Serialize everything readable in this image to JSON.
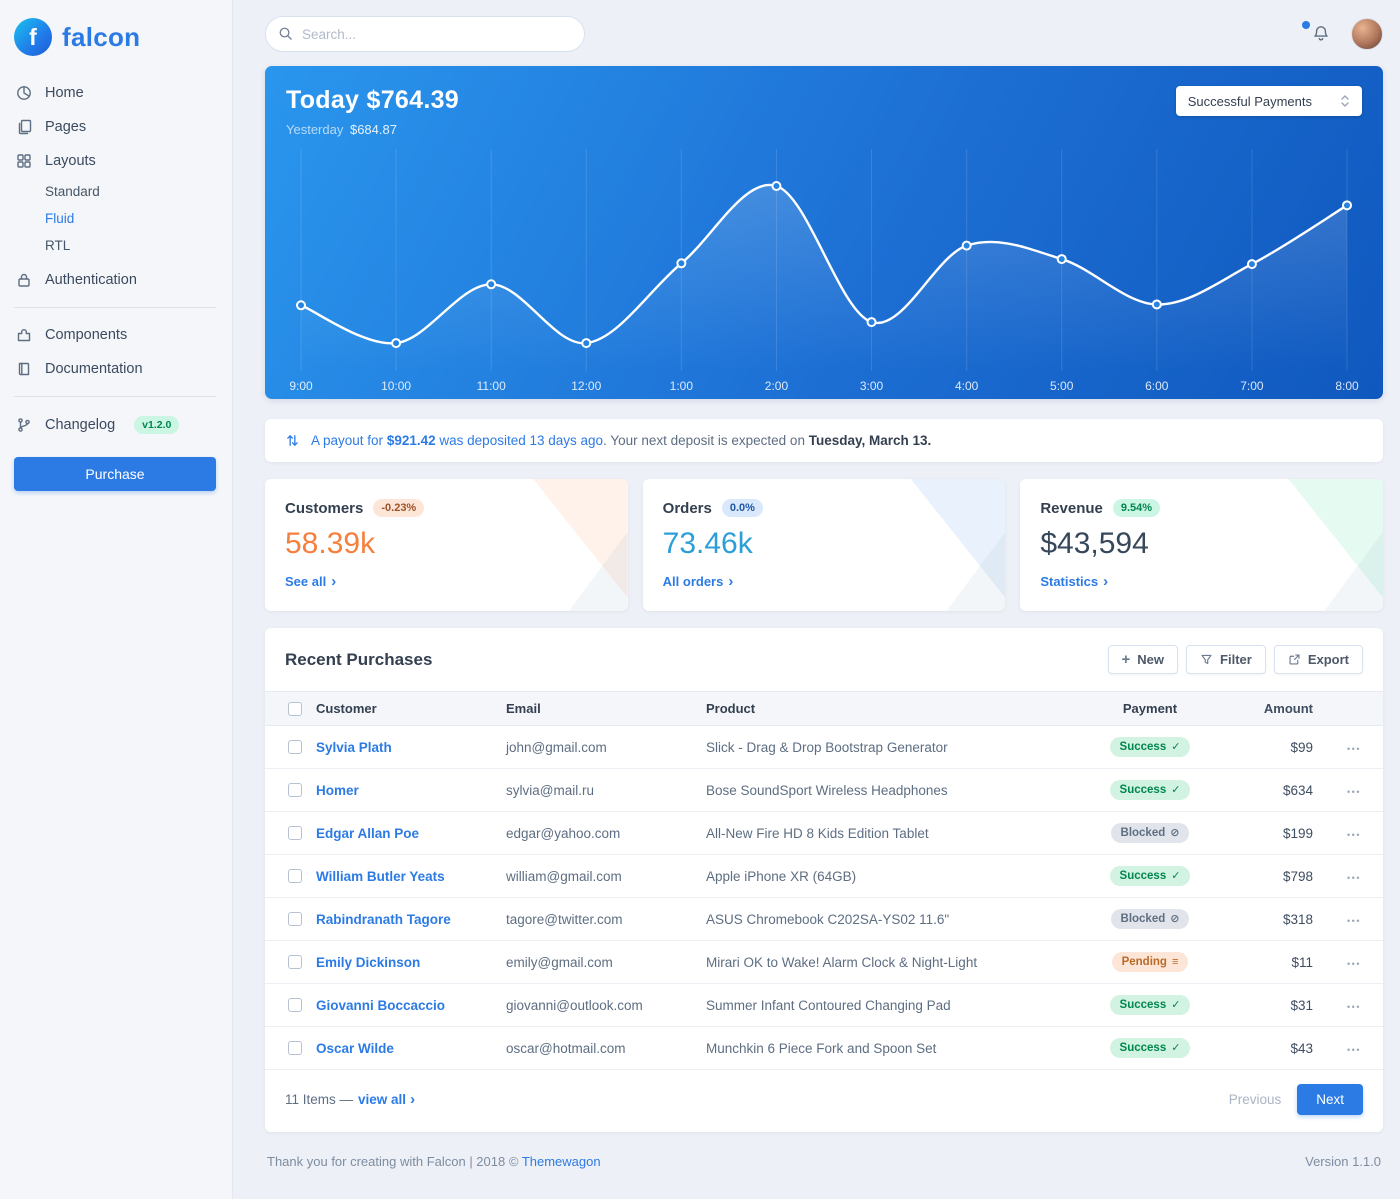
{
  "brand": {
    "name": "falcon",
    "logo_letter": "f"
  },
  "colors": {
    "primary": "#2c7be5",
    "customers_value": "#f5803e",
    "orders_value": "#2c9ed8",
    "revenue_value": "#37475c",
    "chart_gradient": [
      "#2a96ed",
      "#0f58be"
    ]
  },
  "topbar": {
    "search_placeholder": "Search..."
  },
  "sidebar": {
    "home": "Home",
    "pages": "Pages",
    "layouts": "Layouts",
    "standard": "Standard",
    "fluid": "Fluid",
    "rtl": "RTL",
    "authentication": "Authentication",
    "components": "Components",
    "documentation": "Documentation",
    "changelog": "Changelog",
    "changelog_badge": "v1.2.0",
    "purchase": "Purchase"
  },
  "payments": {
    "heading": "Today $764.39",
    "yesterday_label": "Yesterday",
    "yesterday_value": "$684.87",
    "select_value": "Successful Payments"
  },
  "chart_data": {
    "type": "line",
    "title": "Successful Payments",
    "x": [
      "9:00",
      "10:00",
      "11:00",
      "12:00",
      "1:00",
      "2:00",
      "3:00",
      "4:00",
      "5:00",
      "6:00",
      "7:00",
      "8:00"
    ],
    "values": [
      83,
      38,
      108,
      38,
      133,
      225,
      63,
      154,
      138,
      84,
      132,
      202
    ],
    "ylim": [
      0,
      250
    ],
    "xlabel": "",
    "ylabel": "",
    "grid": "vertical",
    "line_color": "#ffffff"
  },
  "payout": {
    "intro_link": "A payout for",
    "amount": "$921.42",
    "intro_link_2": "was deposited 13 days ago",
    "period": ".",
    "rest": "Your next deposit is expected on",
    "date": "Tuesday, March 13."
  },
  "stats": {
    "customers": {
      "title": "Customers",
      "badge": "-0.23%",
      "value": "58.39k",
      "link": "See all"
    },
    "orders": {
      "title": "Orders",
      "badge": "0.0%",
      "value": "73.46k",
      "link": "All orders"
    },
    "revenue": {
      "title": "Revenue",
      "badge": "9.54%",
      "value": "$43,594",
      "link": "Statistics"
    }
  },
  "purchases": {
    "title": "Recent Purchases",
    "new_button": "New",
    "filter_button": "Filter",
    "export_button": "Export",
    "headers": {
      "customer": "Customer",
      "email": "Email",
      "product": "Product",
      "payment": "Payment",
      "amount": "Amount"
    },
    "rows": [
      {
        "customer": "Sylvia Plath",
        "email": "john@gmail.com",
        "product": "Slick - Drag & Drop Bootstrap Generator",
        "payment": {
          "label": "Success",
          "status": "success",
          "icon": "check"
        },
        "amount": "$99"
      },
      {
        "customer": "Homer",
        "email": "sylvia@mail.ru",
        "product": "Bose SoundSport Wireless Headphones",
        "payment": {
          "label": "Success",
          "status": "success",
          "icon": "check"
        },
        "amount": "$634"
      },
      {
        "customer": "Edgar Allan Poe",
        "email": "edgar@yahoo.com",
        "product": "All-New Fire HD 8 Kids Edition Tablet",
        "payment": {
          "label": "Blocked",
          "status": "blocked",
          "icon": "ban"
        },
        "amount": "$199"
      },
      {
        "customer": "William Butler Yeats",
        "email": "william@gmail.com",
        "product": "Apple iPhone XR (64GB)",
        "payment": {
          "label": "Success",
          "status": "success",
          "icon": "check"
        },
        "amount": "$798"
      },
      {
        "customer": "Rabindranath Tagore",
        "email": "tagore@twitter.com",
        "product": "ASUS Chromebook C202SA-YS02 11.6\"",
        "payment": {
          "label": "Blocked",
          "status": "blocked",
          "icon": "ban"
        },
        "amount": "$318"
      },
      {
        "customer": "Emily Dickinson",
        "email": "emily@gmail.com",
        "product": "Mirari OK to Wake! Alarm Clock & Night-Light",
        "payment": {
          "label": "Pending",
          "status": "pending",
          "icon": "stream"
        },
        "amount": "$11"
      },
      {
        "customer": "Giovanni Boccaccio",
        "email": "giovanni@outlook.com",
        "product": "Summer Infant Contoured Changing Pad",
        "payment": {
          "label": "Success",
          "status": "success",
          "icon": "check"
        },
        "amount": "$31"
      },
      {
        "customer": "Oscar Wilde",
        "email": "oscar@hotmail.com",
        "product": "Munchkin 6 Piece Fork and Spoon Set",
        "payment": {
          "label": "Success",
          "status": "success",
          "icon": "check"
        },
        "amount": "$43"
      }
    ],
    "items_label": "11 Items —",
    "view_all": "view all",
    "previous": "Previous",
    "next": "Next"
  },
  "footer": {
    "thanks": "Thank you for creating with Falcon | 2018 ©",
    "vendor": "Themewagon",
    "version": "Version 1.1.0"
  },
  "glyphs": {
    "chevron_right": "›",
    "plus": "+",
    "ellipsis": "•••",
    "check": "✓",
    "ban": "⊘",
    "stream": "≡"
  }
}
